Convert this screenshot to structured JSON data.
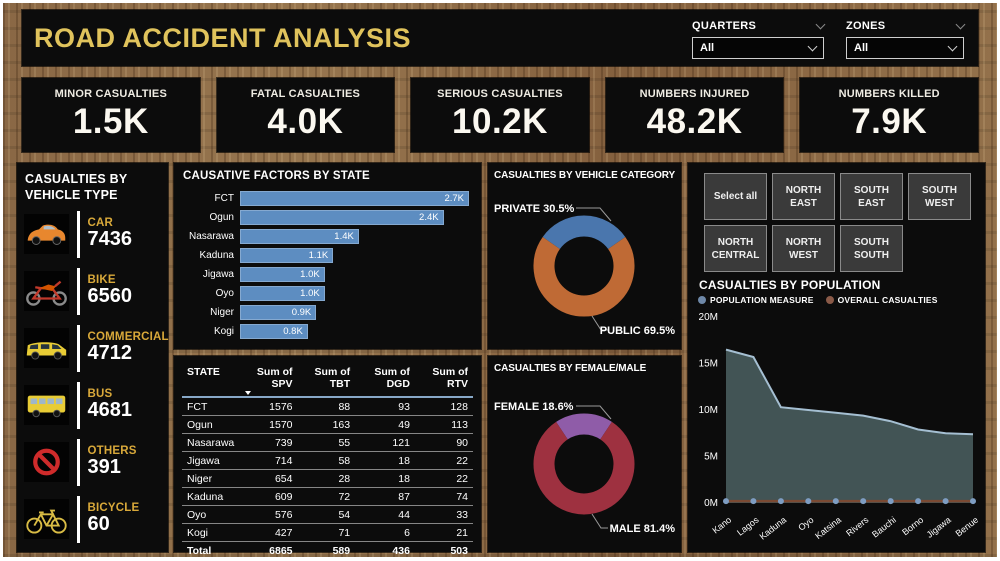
{
  "header": {
    "title": "ROAD ACCIDENT ANALYSIS",
    "slicers": [
      {
        "name": "quarters",
        "label": "QUARTERS",
        "value": "All"
      },
      {
        "name": "zones",
        "label": "ZONES",
        "value": "All"
      }
    ]
  },
  "kpis": [
    {
      "label": "MINOR CASUALTIES",
      "value": "1.5K"
    },
    {
      "label": "FATAL CASUALTIES",
      "value": "4.0K"
    },
    {
      "label": "SERIOUS CASUALTIES",
      "value": "10.2K"
    },
    {
      "label": "NUMBERS INJURED",
      "value": "48.2K"
    },
    {
      "label": "NUMBERS KILLED",
      "value": "7.9K"
    }
  ],
  "vehicle_panel": {
    "title": "CASUALTIES BY VEHICLE TYPE",
    "items": [
      {
        "icon": "car-icon",
        "label": "CAR",
        "value": "7436"
      },
      {
        "icon": "motorcycle-icon",
        "label": "BIKE",
        "value": "6560"
      },
      {
        "icon": "van-icon",
        "label": "COMMERCIAL",
        "value": "4712"
      },
      {
        "icon": "bus-icon",
        "label": "BUS",
        "value": "4681"
      },
      {
        "icon": "no-entry-icon",
        "label": "OTHERS",
        "value": "391"
      },
      {
        "icon": "bicycle-icon",
        "label": "BICYCLE",
        "value": "60"
      }
    ]
  },
  "table": {
    "columns": [
      "STATE",
      "Sum of SPV",
      "Sum of TBT",
      "Sum of DGD",
      "Sum of RTV"
    ],
    "sorted_column": "Sum of SPV",
    "rows": [
      [
        "FCT",
        "1576",
        "88",
        "93",
        "128"
      ],
      [
        "Ogun",
        "1570",
        "163",
        "49",
        "113"
      ],
      [
        "Nasarawa",
        "739",
        "55",
        "121",
        "90"
      ],
      [
        "Jigawa",
        "714",
        "58",
        "18",
        "22"
      ],
      [
        "Niger",
        "654",
        "28",
        "18",
        "22"
      ],
      [
        "Kaduna",
        "609",
        "72",
        "87",
        "74"
      ],
      [
        "Oyo",
        "576",
        "54",
        "44",
        "33"
      ],
      [
        "Kogi",
        "427",
        "71",
        "6",
        "21"
      ]
    ],
    "total": [
      "Total",
      "6865",
      "589",
      "436",
      "503"
    ]
  },
  "zones_filter": {
    "buttons": [
      "Select all",
      "NORTH EAST",
      "SOUTH EAST",
      "SOUTH WEST",
      "NORTH CENTRAL",
      "NORTH WEST",
      "SOUTH SOUTH"
    ]
  },
  "chart_data": [
    {
      "type": "bar",
      "title": "CAUSATIVE FACTORS BY STATE",
      "orientation": "horizontal",
      "categories": [
        "FCT",
        "Ogun",
        "Nasarawa",
        "Kaduna",
        "Jigawa",
        "Oyo",
        "Niger",
        "Kogi"
      ],
      "values": [
        2700,
        2400,
        1400,
        1100,
        1000,
        1000,
        900,
        800
      ],
      "value_labels": [
        "2.7K",
        "2.4K",
        "1.4K",
        "1.1K",
        "1.0K",
        "1.0K",
        "0.9K",
        "0.8K"
      ],
      "xlim": [
        0,
        2700
      ],
      "bar_color": "#5d8dc1"
    },
    {
      "type": "pie",
      "title": "CASUALTIES BY VEHICLE CATEGORY",
      "slices": [
        {
          "label": "PRIVATE",
          "pct": 30.5,
          "display": "PRIVATE 30.5%",
          "color": "#4a76ad"
        },
        {
          "label": "PUBLIC",
          "pct": 69.5,
          "display": "PUBLIC 69.5%",
          "color": "#bf6a35"
        }
      ]
    },
    {
      "type": "pie",
      "title": "CASUALTIES BY FEMALE/MALE",
      "slices": [
        {
          "label": "FEMALE",
          "pct": 18.6,
          "display": "FEMALE 18.6%",
          "color": "#8f5ca8"
        },
        {
          "label": "MALE",
          "pct": 81.4,
          "display": "MALE 81.4%",
          "color": "#9e3140"
        }
      ]
    },
    {
      "type": "area",
      "title": "CASUALTIES BY POPULATION",
      "categories": [
        "Kano",
        "Lagos",
        "Kaduna",
        "Oyo",
        "Katsina",
        "Rivers",
        "Bauchi",
        "Borno",
        "Jigawa",
        "Benue"
      ],
      "series": [
        {
          "name": "POPULATION MEASURE",
          "values_M": [
            16.5,
            15.7,
            10.3,
            10.0,
            9.7,
            9.4,
            8.8,
            7.9,
            7.5,
            7.4
          ],
          "fill_color": "#46585a",
          "line_color": "#a5bfd2",
          "legend_dot_color": "#6e88a8"
        },
        {
          "name": "OVERALL CASUALTIES",
          "values_M": [
            0.2,
            0.2,
            0.2,
            0.2,
            0.2,
            0.2,
            0.2,
            0.2,
            0.2,
            0.2
          ],
          "line_color": "#7b4a33",
          "marker_color": "#7e9dc2",
          "legend_dot_color": "#8a5a48"
        }
      ],
      "ylim_M": [
        0,
        20
      ],
      "yticks": [
        "0M",
        "5M",
        "10M",
        "15M",
        "20M"
      ],
      "legend_position": "top"
    }
  ],
  "colors": {
    "panel_background": "#0c0c0c",
    "title_gold": "#e0c35c",
    "vehicle_label_gold": "#d9a93a",
    "wood_brown": "#8a6845",
    "table_header_underline": "#87a8c8"
  }
}
